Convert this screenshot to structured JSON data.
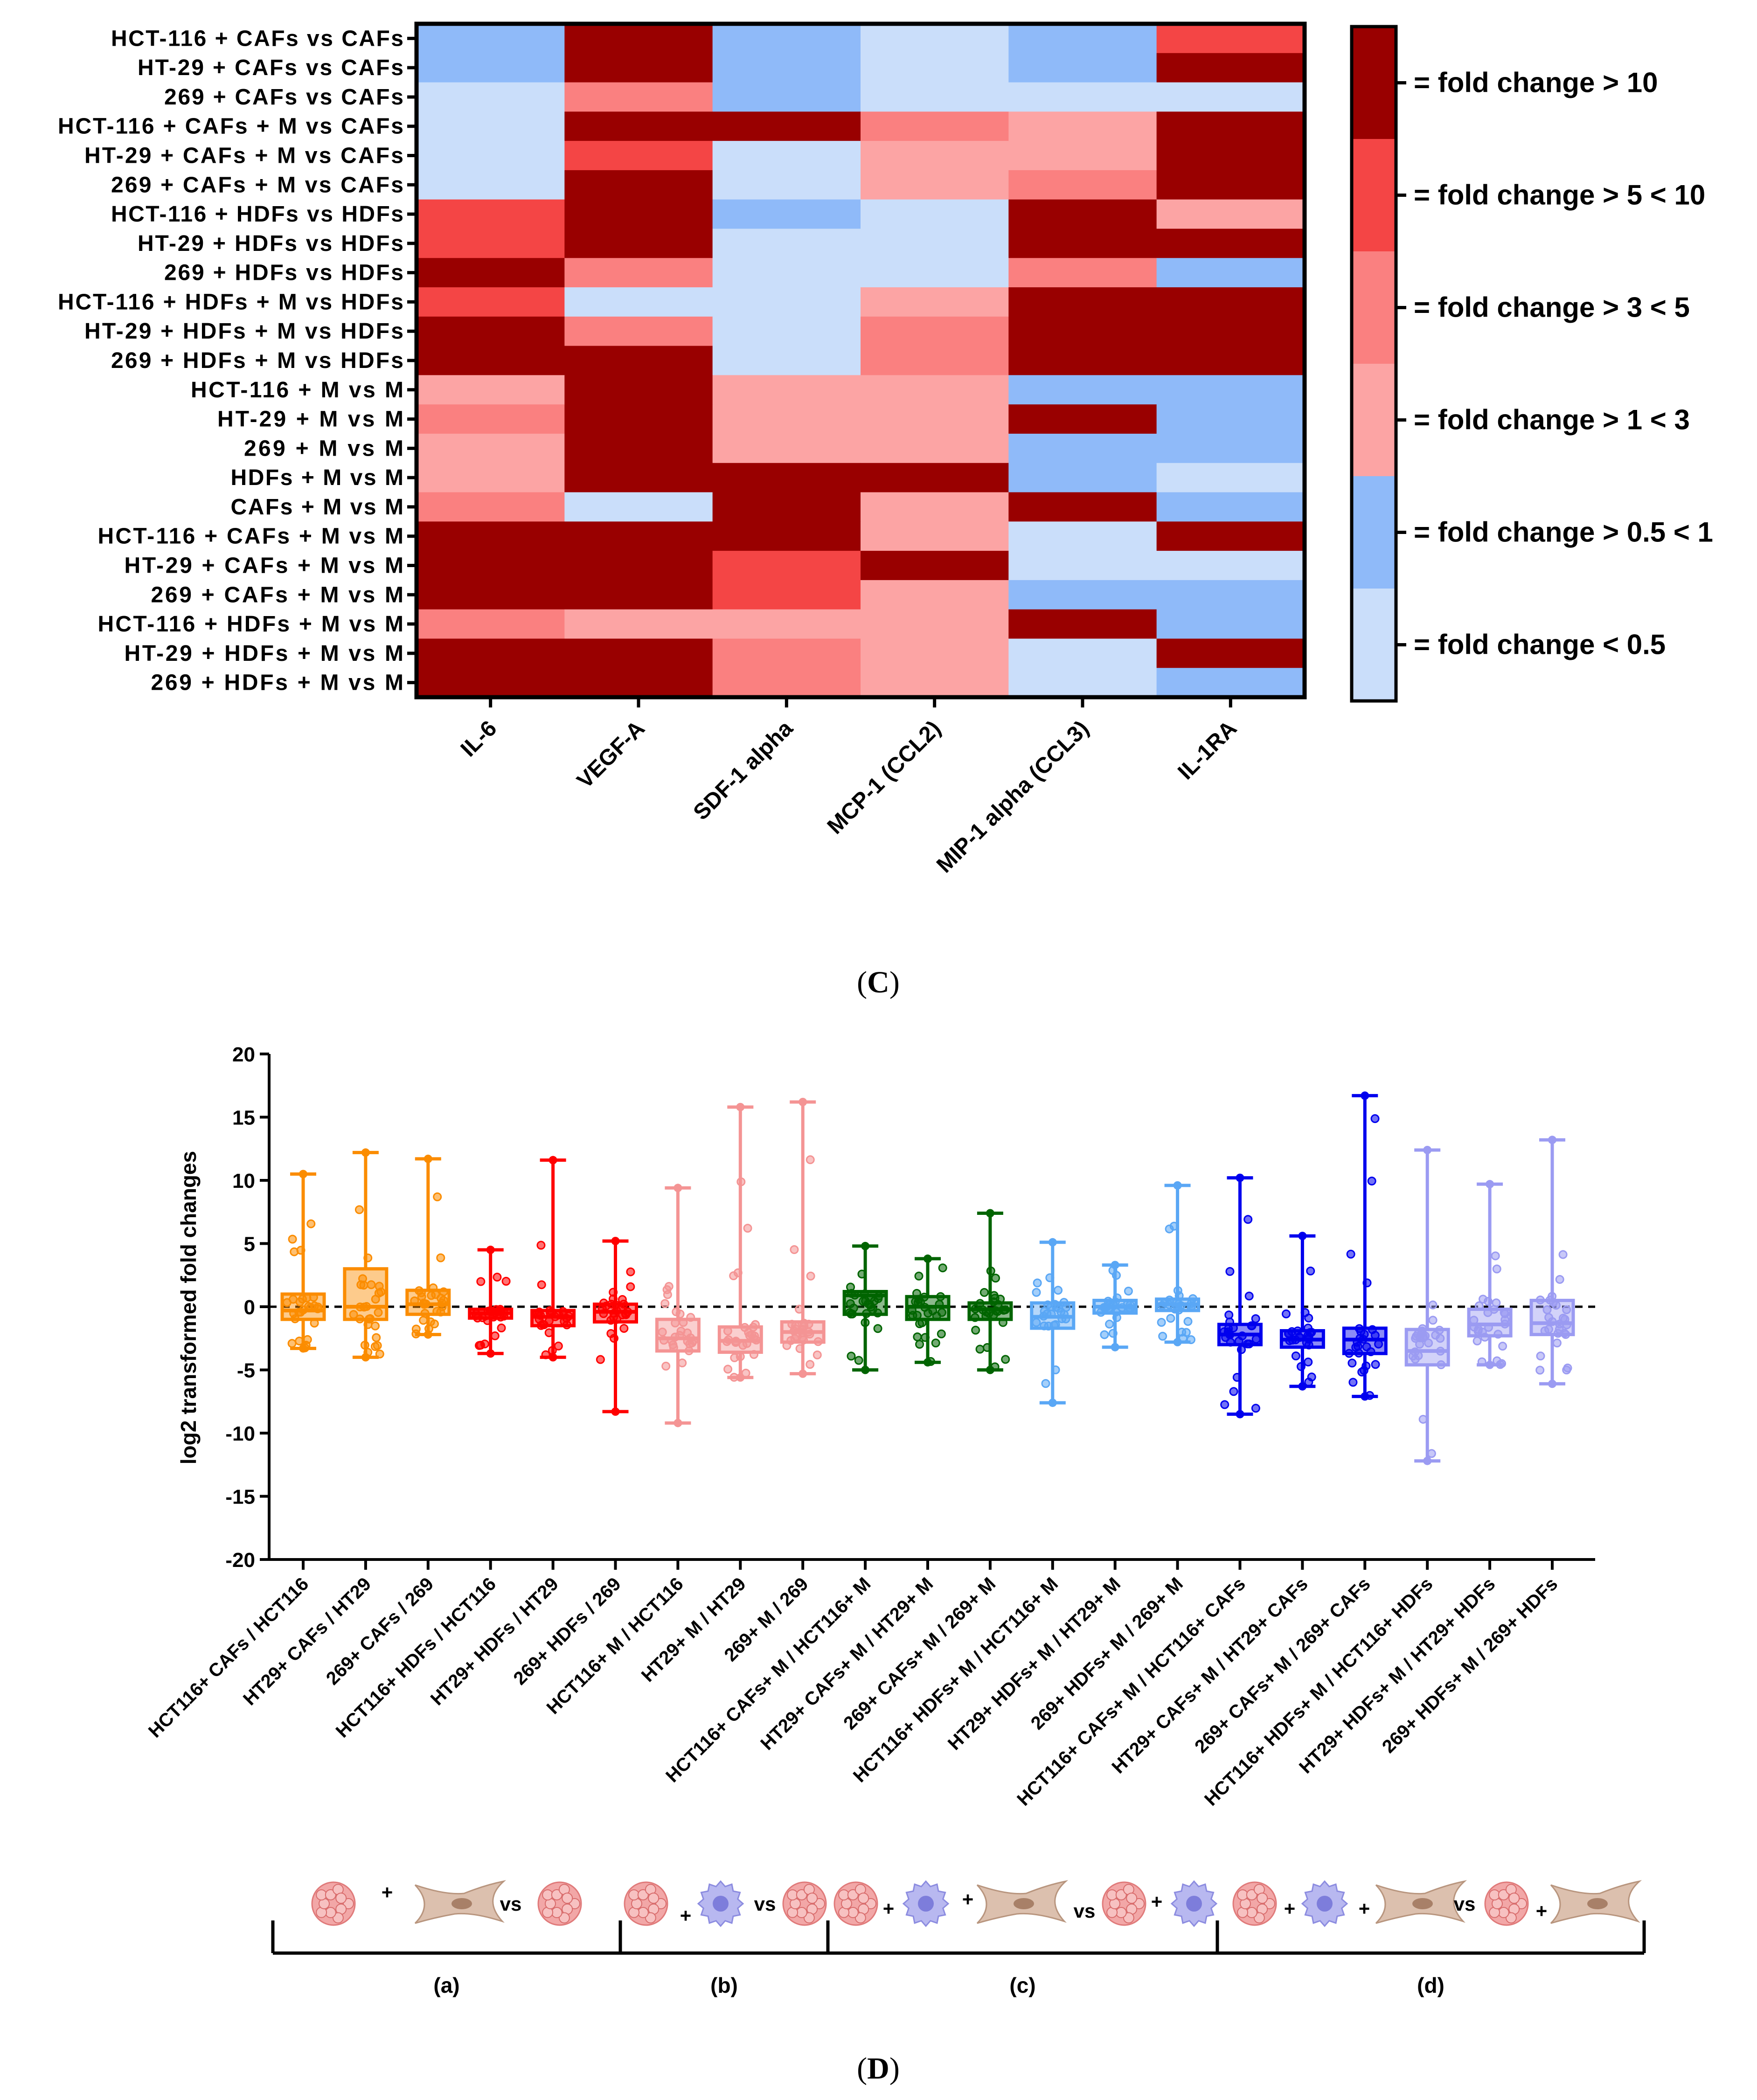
{
  "chart_data": [
    {
      "type": "heatmap",
      "panel_label": "(C)",
      "panel_letter": "C",
      "columns": [
        "IL-6",
        "VEGF-A",
        "SDF-1 alpha",
        "MCP-1 (CCL2)",
        "MIP-1 alpha (CCL3)",
        "IL-1RA"
      ],
      "rows": [
        "HCT-116 + CAFs vs CAFs",
        "HT-29 + CAFs vs CAFs",
        "269 + CAFs vs CAFs",
        "HCT-116 + CAFs + M vs CAFs",
        "HT-29 + CAFs + M vs CAFs",
        "269 + CAFs + M vs CAFs",
        "HCT-116 + HDFs vs HDFs",
        "HT-29 + HDFs vs HDFs",
        "269 + HDFs vs HDFs",
        "HCT-116 + HDFs + M vs HDFs",
        "HT-29 + HDFs + M vs HDFs",
        "269 + HDFs + M vs HDFs",
        "HCT-116 + M vs M",
        "HT-29 + M vs M",
        "269 + M vs M",
        "HDFs + M vs M",
        "CAFs + M vs M",
        "HCT-116 + CAFs + M vs M",
        "HT-29 + CAFs + M vs M",
        "269 + CAFs + M vs M",
        "HCT-116 + HDFs + M vs M",
        "HT-29 + HDFs + M vs M",
        "269 + HDFs + M vs M"
      ],
      "levels_note": "cell value = legend category index: 0 <0.5, 1 >0.5<1, 2 >1<3, 3 >3<5, 4 >5<10, 5 >10",
      "values": [
        [
          1,
          5,
          1,
          0,
          1,
          4
        ],
        [
          1,
          5,
          1,
          0,
          1,
          5
        ],
        [
          0,
          3,
          1,
          0,
          0,
          0
        ],
        [
          0,
          5,
          5,
          3,
          2,
          5
        ],
        [
          0,
          4,
          0,
          2,
          2,
          5
        ],
        [
          0,
          5,
          0,
          2,
          3,
          5
        ],
        [
          4,
          5,
          1,
          0,
          5,
          2
        ],
        [
          4,
          5,
          0,
          0,
          5,
          5
        ],
        [
          5,
          3,
          0,
          0,
          3,
          1
        ],
        [
          4,
          0,
          0,
          2,
          5,
          5
        ],
        [
          5,
          3,
          0,
          3,
          5,
          5
        ],
        [
          5,
          5,
          0,
          3,
          5,
          5
        ],
        [
          2,
          5,
          2,
          2,
          1,
          1
        ],
        [
          3,
          5,
          2,
          2,
          5,
          1
        ],
        [
          2,
          5,
          2,
          2,
          1,
          1
        ],
        [
          2,
          5,
          5,
          5,
          1,
          0
        ],
        [
          3,
          0,
          5,
          2,
          5,
          1
        ],
        [
          5,
          5,
          5,
          2,
          0,
          5
        ],
        [
          5,
          5,
          4,
          5,
          0,
          0
        ],
        [
          5,
          5,
          4,
          2,
          1,
          1
        ],
        [
          3,
          2,
          2,
          2,
          5,
          1
        ],
        [
          5,
          5,
          3,
          2,
          0,
          5
        ],
        [
          5,
          5,
          3,
          2,
          0,
          1
        ]
      ],
      "legend": [
        {
          "label": "= fold change > 10",
          "color": "#990000"
        },
        {
          "label": "= fold change > 5 < 10",
          "color": "#f44545"
        },
        {
          "label": "= fold change > 3 < 5",
          "color": "#fa8080"
        },
        {
          "label": "= fold change > 1 < 3",
          "color": "#fca4a4"
        },
        {
          "label": "= fold change > 0.5 < 1",
          "color": "#8fbaf9"
        },
        {
          "label": "= fold change < 0.5",
          "color": "#cadefa"
        }
      ]
    },
    {
      "type": "box",
      "panel_label": "(D)",
      "panel_letter": "D",
      "ylabel": "log2 transformed fold changes",
      "ylim": [
        -20,
        20
      ],
      "yticks": [
        20,
        15,
        10,
        5,
        0,
        -5,
        -10,
        -15,
        -20
      ],
      "reference_line": 0,
      "categories": [
        "HCT116+ CAFs / HCT116",
        "HT29+ CAFs / HT29",
        "269+ CAFs / 269",
        "HCT116+ HDFs / HCT116",
        "HT29+ HDFs / HT29",
        "269+ HDFs / 269",
        "HCT116+ M / HCT116",
        "HT29+ M / HT29",
        "269+ M / 269",
        "HCT116+ CAFs+ M / HCT116+ M",
        "HT29+ CAFs+ M / HT29+ M",
        "269+ CAFs+ M / 269+ M",
        "HCT116+ HDFs+ M / HCT116+ M",
        "HT29+ HDFs+ M / HT29+ M",
        "269+ HDFs+ M / 269+ M",
        "HCT116+ CAFs+ M / HCT116+ CAFs",
        "HT29+ CAFs+ M / HT29+ CAFs",
        "269+ CAFs+ M / 269+ CAFs",
        "HCT116+ HDFs+ M / HCT116+ HDFs",
        "HT29+ HDFs+ M / HT29+ HDFs",
        "269+ HDFs+ M / 269+ HDFs"
      ],
      "colors": [
        "#fb8c00",
        "#fb8c00",
        "#fb8c00",
        "#ff0000",
        "#ff0000",
        "#ff0000",
        "#f49494",
        "#f49494",
        "#f49494",
        "#006400",
        "#006400",
        "#006400",
        "#5aa7f5",
        "#5aa7f5",
        "#5aa7f5",
        "#0000ee",
        "#0000ee",
        "#0000ee",
        "#9b9bf2",
        "#9b9bf2",
        "#9b9bf2"
      ],
      "boxes": [
        {
          "min": -3.3,
          "q1": -1.0,
          "median": -0.3,
          "q3": 1.0,
          "max": 10.5
        },
        {
          "min": -4.0,
          "q1": -1.0,
          "median": 0.0,
          "q3": 3.0,
          "max": 12.2
        },
        {
          "min": -2.2,
          "q1": -0.6,
          "median": 0.2,
          "q3": 1.3,
          "max": 11.7
        },
        {
          "min": -3.7,
          "q1": -0.9,
          "median": -0.5,
          "q3": -0.2,
          "max": 4.5
        },
        {
          "min": -4.0,
          "q1": -1.5,
          "median": -0.8,
          "q3": -0.3,
          "max": 11.6
        },
        {
          "min": -8.3,
          "q1": -1.2,
          "median": -0.4,
          "q3": 0.2,
          "max": 5.2
        },
        {
          "min": -9.2,
          "q1": -3.5,
          "median": -2.5,
          "q3": -1.0,
          "max": 9.4
        },
        {
          "min": -5.6,
          "q1": -3.6,
          "median": -2.7,
          "q3": -1.6,
          "max": 15.8
        },
        {
          "min": -5.3,
          "q1": -2.8,
          "median": -2.0,
          "q3": -1.2,
          "max": 16.2
        },
        {
          "min": -5.0,
          "q1": -0.6,
          "median": 0.9,
          "q3": 1.2,
          "max": 4.8
        },
        {
          "min": -4.4,
          "q1": -1.0,
          "median": 0.0,
          "q3": 0.8,
          "max": 3.8
        },
        {
          "min": -5.0,
          "q1": -1.0,
          "median": -0.2,
          "q3": 0.3,
          "max": 7.4
        },
        {
          "min": -7.6,
          "q1": -1.7,
          "median": -0.8,
          "q3": 0.3,
          "max": 5.1
        },
        {
          "min": -3.2,
          "q1": -0.5,
          "median": 0.0,
          "q3": 0.5,
          "max": 3.3
        },
        {
          "min": -2.8,
          "q1": -0.3,
          "median": 0.2,
          "q3": 0.6,
          "max": 9.6
        },
        {
          "min": -8.5,
          "q1": -3.0,
          "median": -2.2,
          "q3": -1.4,
          "max": 10.2
        },
        {
          "min": -6.3,
          "q1": -3.2,
          "median": -2.6,
          "q3": -1.9,
          "max": 5.6
        },
        {
          "min": -7.1,
          "q1": -3.7,
          "median": -2.6,
          "q3": -1.7,
          "max": 16.7
        },
        {
          "min": -12.2,
          "q1": -4.6,
          "median": -3.5,
          "q3": -1.8,
          "max": 12.4
        },
        {
          "min": -4.6,
          "q1": -2.3,
          "median": -1.4,
          "q3": -0.2,
          "max": 9.7
        },
        {
          "min": -6.1,
          "q1": -2.2,
          "median": -1.3,
          "q3": 0.5,
          "max": 13.2
        }
      ],
      "groups": [
        {
          "label": "(a)",
          "first": 0,
          "last": 5
        },
        {
          "label": "(b)",
          "first": 6,
          "last": 8
        },
        {
          "label": "(c)",
          "first": 9,
          "last": 14
        },
        {
          "label": "(d)",
          "first": 15,
          "last": 20
        }
      ],
      "schematic": {
        "vs_label": "vs",
        "plus_label": "+",
        "note": "cell icons: tumor cell (pink spheroid), macrophage (purple), fibroblast (tan spindle)"
      }
    }
  ]
}
